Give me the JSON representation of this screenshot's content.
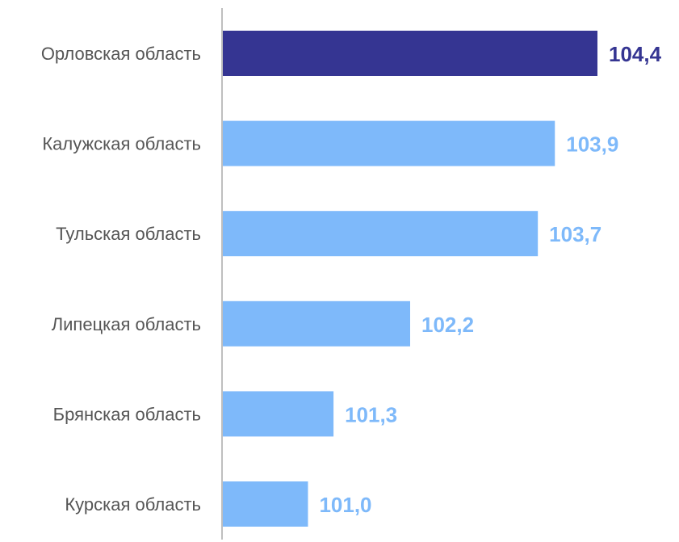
{
  "chart_data": {
    "type": "bar",
    "orientation": "horizontal",
    "categories": [
      "Орловская область",
      "Калужская область",
      "Тульская область",
      "Липецкая область",
      "Брянская область",
      "Курская область"
    ],
    "values": [
      104.4,
      103.9,
      103.7,
      102.2,
      101.3,
      101.0
    ],
    "value_labels": [
      "104,4",
      "103,9",
      "103,7",
      "102,2",
      "101,3",
      "101,0"
    ],
    "xlim": [
      100,
      104.4
    ],
    "title": "",
    "xlabel": "",
    "ylabel": "",
    "grid": false,
    "legend": "none",
    "highlight_index": 0,
    "colors": {
      "highlight": "#353592",
      "default": "#7EB9FA",
      "axis": "#BFBFBF"
    }
  }
}
